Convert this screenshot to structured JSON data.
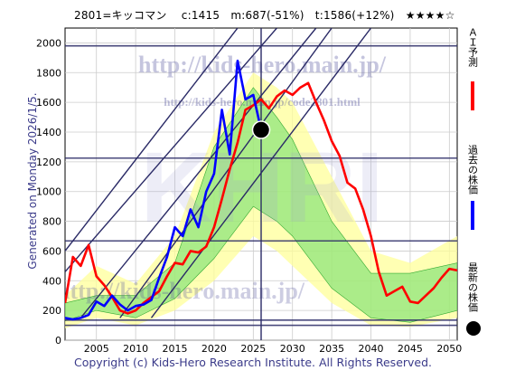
{
  "header": {
    "text": "2801=キッコマン　 c:1415　m:687(-51%)　t:1586(+12%)　★★★★☆"
  },
  "generated_label": "Generated on Monday 2026/1/5.",
  "copyright": "Copyright (c) Kids-Hero Research Institute. All Rights Reserved.",
  "watermarks": {
    "url_top": "http://kids-hero.main.jp/",
    "url_mid": "http://kids-hero.main.jp/code2801.html",
    "url_bottom": "http://kids-hero.main.jp/",
    "big_letters": "KHRI"
  },
  "legend": [
    {
      "label": "ＡＩ予測",
      "color": "#ff0000"
    },
    {
      "label": "過去の株価",
      "color": "#0000ff"
    },
    {
      "label": "最新の株価",
      "color": "#000000"
    }
  ],
  "colors": {
    "forecast": "#ff0000",
    "history": "#0000ff",
    "band_outer": "#ffff99",
    "band_inner": "#66dd66",
    "grid": "#cccccc",
    "guide": "#2a2a66"
  },
  "chart_data": {
    "type": "line",
    "xlim": [
      2001,
      2051
    ],
    "ylim": [
      0,
      2100
    ],
    "x_ticks": [
      2005,
      2010,
      2015,
      2020,
      2025,
      2030,
      2035,
      2040,
      2045,
      2050
    ],
    "y_ticks": [
      0,
      200,
      400,
      600,
      800,
      1000,
      1200,
      1400,
      1600,
      1800,
      2000
    ],
    "latest": {
      "x": 2026.0,
      "y": 1415
    },
    "reference_levels": [
      1980,
      1225,
      668,
      135,
      100
    ],
    "vertical_marker": 2026.0,
    "series": [
      {
        "name": "ＡＩ予測",
        "points": [
          [
            2001,
            250
          ],
          [
            2002,
            560
          ],
          [
            2003,
            500
          ],
          [
            2004,
            640
          ],
          [
            2005,
            430
          ],
          [
            2006,
            370
          ],
          [
            2007,
            290
          ],
          [
            2008,
            200
          ],
          [
            2009,
            180
          ],
          [
            2010,
            200
          ],
          [
            2011,
            250
          ],
          [
            2012,
            290
          ],
          [
            2013,
            330
          ],
          [
            2014,
            430
          ],
          [
            2015,
            520
          ],
          [
            2016,
            510
          ],
          [
            2017,
            600
          ],
          [
            2018,
            590
          ],
          [
            2019,
            630
          ],
          [
            2020,
            760
          ],
          [
            2021,
            950
          ],
          [
            2022,
            1150
          ],
          [
            2023,
            1330
          ],
          [
            2024,
            1550
          ],
          [
            2025,
            1580
          ],
          [
            2026,
            1620
          ],
          [
            2027,
            1560
          ],
          [
            2028,
            1640
          ],
          [
            2029,
            1680
          ],
          [
            2030,
            1650
          ],
          [
            2031,
            1700
          ],
          [
            2032,
            1730
          ],
          [
            2033,
            1600
          ],
          [
            2034,
            1480
          ],
          [
            2035,
            1340
          ],
          [
            2036,
            1240
          ],
          [
            2037,
            1060
          ],
          [
            2038,
            1020
          ],
          [
            2039,
            880
          ],
          [
            2040,
            700
          ],
          [
            2041,
            460
          ],
          [
            2042,
            300
          ],
          [
            2043,
            330
          ],
          [
            2044,
            360
          ],
          [
            2045,
            260
          ],
          [
            2046,
            250
          ],
          [
            2047,
            300
          ],
          [
            2048,
            350
          ],
          [
            2049,
            420
          ],
          [
            2050,
            480
          ],
          [
            2051,
            470
          ]
        ]
      },
      {
        "name": "過去の株価",
        "points": [
          [
            2001,
            150
          ],
          [
            2002,
            140
          ],
          [
            2003,
            150
          ],
          [
            2004,
            170
          ],
          [
            2005,
            260
          ],
          [
            2006,
            230
          ],
          [
            2007,
            300
          ],
          [
            2008,
            240
          ],
          [
            2009,
            200
          ],
          [
            2010,
            230
          ],
          [
            2011,
            240
          ],
          [
            2012,
            270
          ],
          [
            2013,
            420
          ],
          [
            2014,
            560
          ],
          [
            2015,
            760
          ],
          [
            2016,
            700
          ],
          [
            2017,
            880
          ],
          [
            2018,
            760
          ],
          [
            2019,
            1000
          ],
          [
            2020,
            1120
          ],
          [
            2021,
            1550
          ],
          [
            2022,
            1250
          ],
          [
            2023,
            1880
          ],
          [
            2024,
            1620
          ],
          [
            2025,
            1650
          ],
          [
            2026,
            1415
          ]
        ]
      }
    ],
    "diagonal_guides": [
      [
        [
          2001,
          600
        ],
        [
          2023,
          2100
        ]
      ],
      [
        [
          2001,
          460
        ],
        [
          2028,
          2100
        ]
      ],
      [
        [
          2003,
          150
        ],
        [
          2033,
          2100
        ]
      ],
      [
        [
          2008,
          150
        ],
        [
          2035,
          2100
        ]
      ],
      [
        [
          2012,
          150
        ],
        [
          2040,
          2100
        ]
      ]
    ],
    "band_outer": {
      "upper": [
        [
          2001,
          300
        ],
        [
          2005,
          500
        ],
        [
          2010,
          380
        ],
        [
          2015,
          700
        ],
        [
          2020,
          1400
        ],
        [
          2025,
          1800
        ],
        [
          2028,
          1700
        ],
        [
          2030,
          1600
        ],
        [
          2035,
          1100
        ],
        [
          2040,
          600
        ],
        [
          2045,
          520
        ],
        [
          2051,
          700
        ]
      ],
      "lower": [
        [
          2001,
          80
        ],
        [
          2005,
          150
        ],
        [
          2010,
          100
        ],
        [
          2015,
          200
        ],
        [
          2020,
          400
        ],
        [
          2025,
          700
        ],
        [
          2028,
          600
        ],
        [
          2030,
          500
        ],
        [
          2035,
          250
        ],
        [
          2040,
          100
        ],
        [
          2045,
          90
        ],
        [
          2051,
          150
        ]
      ]
    },
    "band_inner": {
      "upper": [
        [
          2001,
          250
        ],
        [
          2005,
          300
        ],
        [
          2010,
          300
        ],
        [
          2015,
          520
        ],
        [
          2020,
          1300
        ],
        [
          2025,
          1700
        ],
        [
          2028,
          1500
        ],
        [
          2030,
          1350
        ],
        [
          2035,
          800
        ],
        [
          2040,
          450
        ],
        [
          2045,
          450
        ],
        [
          2051,
          520
        ]
      ],
      "lower": [
        [
          2001,
          130
        ],
        [
          2005,
          200
        ],
        [
          2010,
          150
        ],
        [
          2015,
          280
        ],
        [
          2020,
          550
        ],
        [
          2025,
          900
        ],
        [
          2028,
          800
        ],
        [
          2030,
          700
        ],
        [
          2035,
          350
        ],
        [
          2040,
          150
        ],
        [
          2045,
          120
        ],
        [
          2051,
          200
        ]
      ]
    }
  }
}
